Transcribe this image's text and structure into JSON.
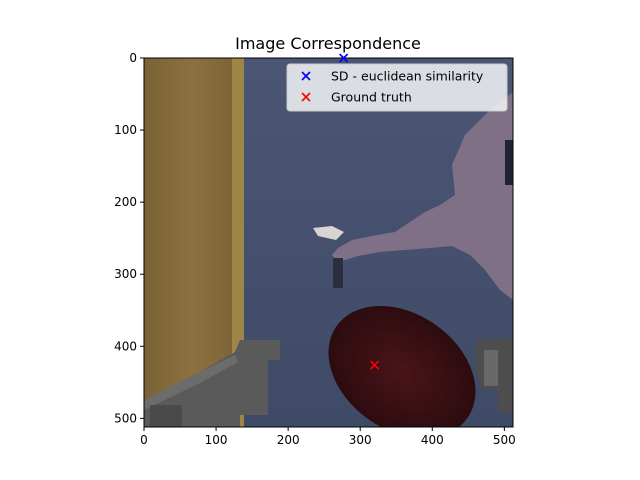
{
  "chart_data": {
    "type": "scatter",
    "title": "Image Correspondence",
    "xlabel": "",
    "ylabel": "",
    "xlim": [
      0,
      512
    ],
    "ylim": [
      512,
      0
    ],
    "x_ticks": [
      0,
      100,
      200,
      300,
      400,
      500
    ],
    "y_ticks": [
      0,
      100,
      200,
      300,
      400,
      500
    ],
    "grid": false,
    "legend_position": "top-right",
    "series": [
      {
        "name": "SD - euclidean similarity",
        "marker": "x",
        "color": "#0000ff",
        "points": [
          [
            277,
            0
          ]
        ]
      },
      {
        "name": "Ground truth",
        "marker": "x",
        "color": "#ff0000",
        "points": [
          [
            320,
            426
          ]
        ]
      }
    ],
    "background": "image (game screenshot)"
  }
}
